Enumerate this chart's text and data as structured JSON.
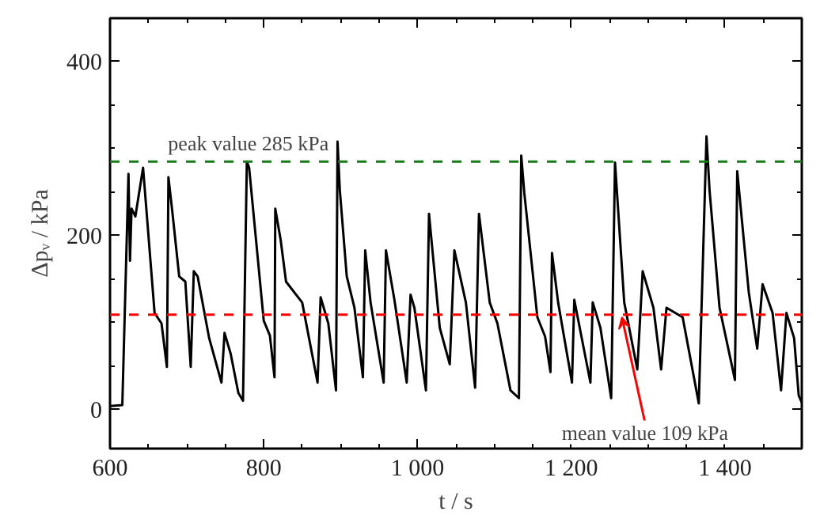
{
  "chart_data": {
    "type": "line",
    "xlabel": "t / s",
    "ylabel": "Δpᵥ / kPa",
    "xlim": [
      600,
      1500
    ],
    "ylim": [
      -45,
      450
    ],
    "xticks": [
      600,
      {
        "value": 650,
        "label": null
      },
      800,
      {
        "value": 700,
        "label": null
      },
      {
        "value": 750,
        "label": null
      },
      {
        "value": 850,
        "label": null
      },
      {
        "value": 900,
        "label": null
      },
      {
        "value": 950,
        "label": null
      },
      {
        "value": 1000,
        "label": "1 000"
      },
      {
        "value": 1050,
        "label": null
      },
      {
        "value": 1100,
        "label": null
      },
      {
        "value": 1150,
        "label": null
      },
      {
        "value": 1200,
        "label": "1 200"
      },
      {
        "value": 1250,
        "label": null
      },
      {
        "value": 1300,
        "label": null
      },
      {
        "value": 1350,
        "label": null
      },
      {
        "value": 1400,
        "label": "1 400"
      },
      {
        "value": 1450,
        "label": null
      }
    ],
    "yticks": [
      0,
      {
        "value": 50,
        "label": null
      },
      {
        "value": 100,
        "label": null
      },
      {
        "value": 150,
        "label": null
      },
      200,
      {
        "value": 250,
        "label": null
      },
      {
        "value": 300,
        "label": null
      },
      {
        "value": 350,
        "label": null
      },
      400
    ],
    "grid": false,
    "marker": "none",
    "line_style": "solid",
    "series": [
      {
        "color": "#000000",
        "x": [
          600,
          616,
          624,
          626,
          628,
          633,
          643,
          658,
          667,
          674,
          676,
          681,
          690,
          698,
          705,
          709,
          714,
          729,
          745,
          749,
          757,
          767,
          773,
          778,
          781,
          788,
          800,
          808,
          814,
          815,
          822,
          829,
          850,
          870,
          874,
          884,
          894,
          896,
          899,
          908,
          918,
          929,
          932,
          939,
          956,
          959,
          970,
          986,
          991,
          996,
          1011,
          1015,
          1029,
          1042,
          1048,
          1063,
          1075,
          1080,
          1094,
          1104,
          1121,
          1132,
          1135,
          1139,
          1156,
          1166,
          1173,
          1175,
          1183,
          1201,
          1204,
          1225,
          1228,
          1238,
          1252,
          1257,
          1269,
          1286,
          1293,
          1307,
          1317,
          1324,
          1345,
          1366,
          1376,
          1380,
          1393,
          1413,
          1416,
          1431,
          1442,
          1449,
          1462,
          1473,
          1480,
          1490,
          1496,
          1500
        ],
        "values": [
          4,
          5,
          271,
          171,
          231,
          222,
          278,
          111,
          99,
          49,
          267,
          228,
          153,
          147,
          49,
          159,
          153,
          82,
          31,
          88,
          64,
          19,
          10,
          285,
          278,
          213,
          102,
          85,
          37,
          231,
          195,
          147,
          123,
          31,
          129,
          99,
          22,
          308,
          252,
          153,
          117,
          37,
          183,
          123,
          31,
          183,
          126,
          31,
          132,
          117,
          22,
          225,
          94,
          52,
          183,
          123,
          25,
          225,
          123,
          99,
          22,
          13,
          292,
          249,
          106,
          84,
          43,
          180,
          123,
          31,
          126,
          31,
          123,
          94,
          13,
          284,
          123,
          46,
          159,
          117,
          46,
          117,
          106,
          7,
          314,
          252,
          117,
          34,
          274,
          135,
          70,
          144,
          111,
          22,
          111,
          82,
          16,
          8
        ]
      }
    ],
    "ref_lines": [
      {
        "axis": "y",
        "value": 285,
        "color": "#1a7a1a",
        "line_style": "dashed"
      },
      {
        "axis": "y",
        "value": 109,
        "color": "#ff0000",
        "line_style": "dashed"
      }
    ],
    "annotations": [
      {
        "text": "peak value 285 kPa",
        "x": 780,
        "y": 285
      },
      {
        "text": "mean value 109 kPa",
        "x": 1266,
        "y": 106
      }
    ]
  }
}
